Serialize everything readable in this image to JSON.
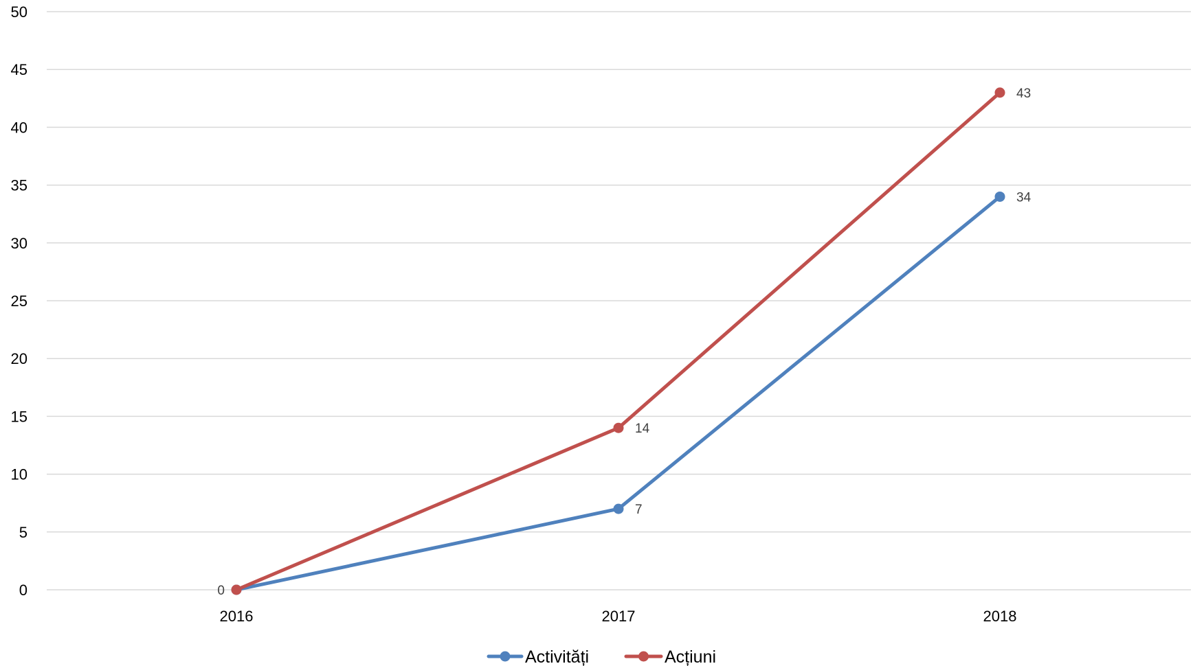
{
  "chart_data": {
    "type": "line",
    "title": "",
    "xlabel": "",
    "ylabel": "",
    "categories": [
      "2016",
      "2017",
      "2018"
    ],
    "ylim": [
      0,
      50
    ],
    "yticks": [
      0,
      5,
      10,
      15,
      20,
      25,
      30,
      35,
      40,
      45,
      50
    ],
    "grid": true,
    "legend_position": "bottom",
    "series": [
      {
        "name": "Activități",
        "color": "#4F81BD",
        "values": [
          0,
          7,
          34
        ],
        "data_labels": [
          "",
          "7",
          "34"
        ]
      },
      {
        "name": "Acțiuni",
        "color": "#C0504D",
        "values": [
          0,
          14,
          43
        ],
        "data_labels": [
          "0",
          "14",
          "43"
        ]
      }
    ]
  }
}
